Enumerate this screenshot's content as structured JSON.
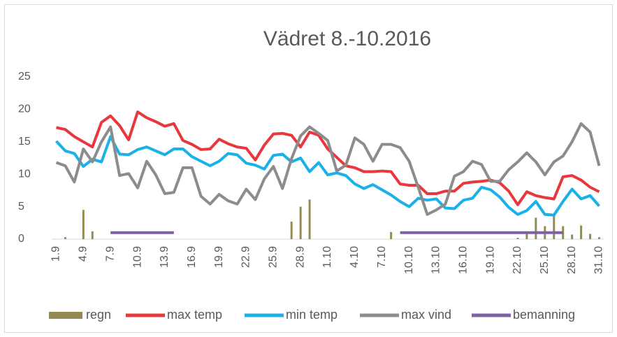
{
  "chart_data": {
    "type": "line",
    "title": "Vädret 8.-10.2016",
    "categories": [
      "1.9",
      null,
      null,
      "4.9",
      null,
      null,
      "7.9",
      null,
      null,
      "10.9",
      null,
      null,
      "13.9",
      null,
      null,
      "16.9",
      null,
      null,
      "19.9",
      null,
      null,
      "22.9",
      null,
      null,
      "25.9",
      null,
      null,
      "28.9",
      null,
      null,
      "1.10",
      null,
      null,
      "4.10",
      null,
      null,
      "7.10",
      null,
      null,
      "10.10",
      null,
      null,
      "13.10",
      null,
      null,
      "16.10",
      null,
      null,
      "19.10",
      null,
      null,
      "22.10",
      null,
      null,
      "25.10",
      null,
      null,
      "28.10",
      null,
      null,
      "31.10"
    ],
    "series": [
      {
        "name": "regn",
        "type": "bar",
        "color": "#948a54",
        "values": [
          0,
          0.3,
          0,
          4.5,
          1.2,
          0,
          0,
          0,
          0,
          0,
          0,
          0,
          0,
          0,
          0,
          0,
          0,
          0,
          0,
          0,
          0,
          0,
          0,
          0,
          0,
          0,
          2.7,
          5.0,
          6.1,
          0,
          0,
          0,
          0,
          0,
          0,
          0,
          0,
          1.1,
          0,
          0,
          0,
          0,
          0,
          0,
          0,
          0,
          0,
          0,
          0,
          0,
          0,
          0.2,
          1.0,
          3.3,
          2.0,
          3.8,
          2.0,
          0.7,
          2.1,
          0.8,
          0.3
        ]
      },
      {
        "name": "max temp",
        "type": "line",
        "color": "#e8383d",
        "values": [
          17.2,
          16.9,
          15.8,
          15.0,
          14.2,
          18.0,
          19.0,
          17.5,
          15.3,
          19.6,
          18.7,
          18.1,
          17.4,
          17.8,
          15.2,
          14.6,
          13.8,
          13.9,
          15.4,
          14.7,
          14.2,
          14.0,
          12.2,
          14.5,
          16.2,
          16.3,
          16.0,
          14.2,
          16.5,
          16.0,
          13.9,
          12.6,
          11.3,
          11.0,
          10.4,
          10.4,
          10.5,
          10.4,
          8.5,
          8.3,
          8.3,
          7.0,
          7.0,
          7.4,
          7.4,
          8.6,
          8.8,
          8.9,
          9.1,
          8.7,
          7.4,
          5.3,
          7.3,
          6.7,
          6.4,
          6.2,
          9.6,
          9.8,
          9.1,
          8.0,
          7.3
        ]
      },
      {
        "name": "min temp",
        "type": "line",
        "color": "#1ab0e8",
        "values": [
          15.1,
          13.6,
          13.2,
          11.2,
          12.3,
          11.9,
          15.8,
          13.1,
          13.0,
          13.8,
          14.2,
          13.6,
          13.0,
          13.9,
          13.9,
          12.7,
          12.0,
          11.3,
          12.0,
          13.2,
          13.0,
          11.7,
          11.4,
          10.8,
          12.9,
          13.1,
          11.9,
          12.5,
          10.4,
          11.8,
          9.9,
          10.2,
          9.8,
          8.5,
          7.8,
          8.4,
          7.6,
          6.8,
          5.8,
          5.0,
          6.3,
          6.0,
          6.2,
          4.8,
          4.7,
          6.0,
          6.3,
          8.0,
          7.6,
          6.5,
          4.9,
          3.8,
          4.4,
          5.8,
          3.8,
          3.7,
          5.8,
          7.7,
          6.2,
          6.7,
          5.1
        ]
      },
      {
        "name": "max vind",
        "type": "line",
        "color": "#8c8c8c",
        "values": [
          11.8,
          11.3,
          8.8,
          13.9,
          11.9,
          15.0,
          17.3,
          9.8,
          10.1,
          7.9,
          12.0,
          9.9,
          7.0,
          7.2,
          11.0,
          11.0,
          6.6,
          5.4,
          6.9,
          5.9,
          5.4,
          7.7,
          6.1,
          9.3,
          11.2,
          7.8,
          12.4,
          15.9,
          17.3,
          16.3,
          15.2,
          10.5,
          11.4,
          15.6,
          14.6,
          12.0,
          14.6,
          14.6,
          14.1,
          12.0,
          8.0,
          3.8,
          4.5,
          5.4,
          9.7,
          10.4,
          12.0,
          11.5,
          8.9,
          8.9,
          10.7,
          11.9,
          13.3,
          11.9,
          9.9,
          11.9,
          12.8,
          15.0,
          17.8,
          16.5,
          11.3
        ]
      },
      {
        "name": "bemanning",
        "type": "line",
        "color": "#7f5fa8",
        "values": [
          null,
          null,
          null,
          null,
          null,
          null,
          1,
          1,
          1,
          1,
          1,
          1,
          1,
          1,
          null,
          null,
          null,
          null,
          null,
          null,
          null,
          null,
          null,
          null,
          null,
          null,
          null,
          null,
          null,
          null,
          null,
          null,
          null,
          null,
          null,
          null,
          null,
          null,
          1,
          1,
          1,
          1,
          1,
          1,
          1,
          1,
          1,
          1,
          1,
          1,
          1,
          1,
          1,
          1,
          1,
          1,
          1,
          null,
          null,
          null,
          null
        ]
      }
    ],
    "ylim": [
      0,
      25
    ],
    "yticks": [
      0,
      5,
      10,
      15,
      20,
      25
    ],
    "grid": false,
    "legend": "bottom"
  }
}
